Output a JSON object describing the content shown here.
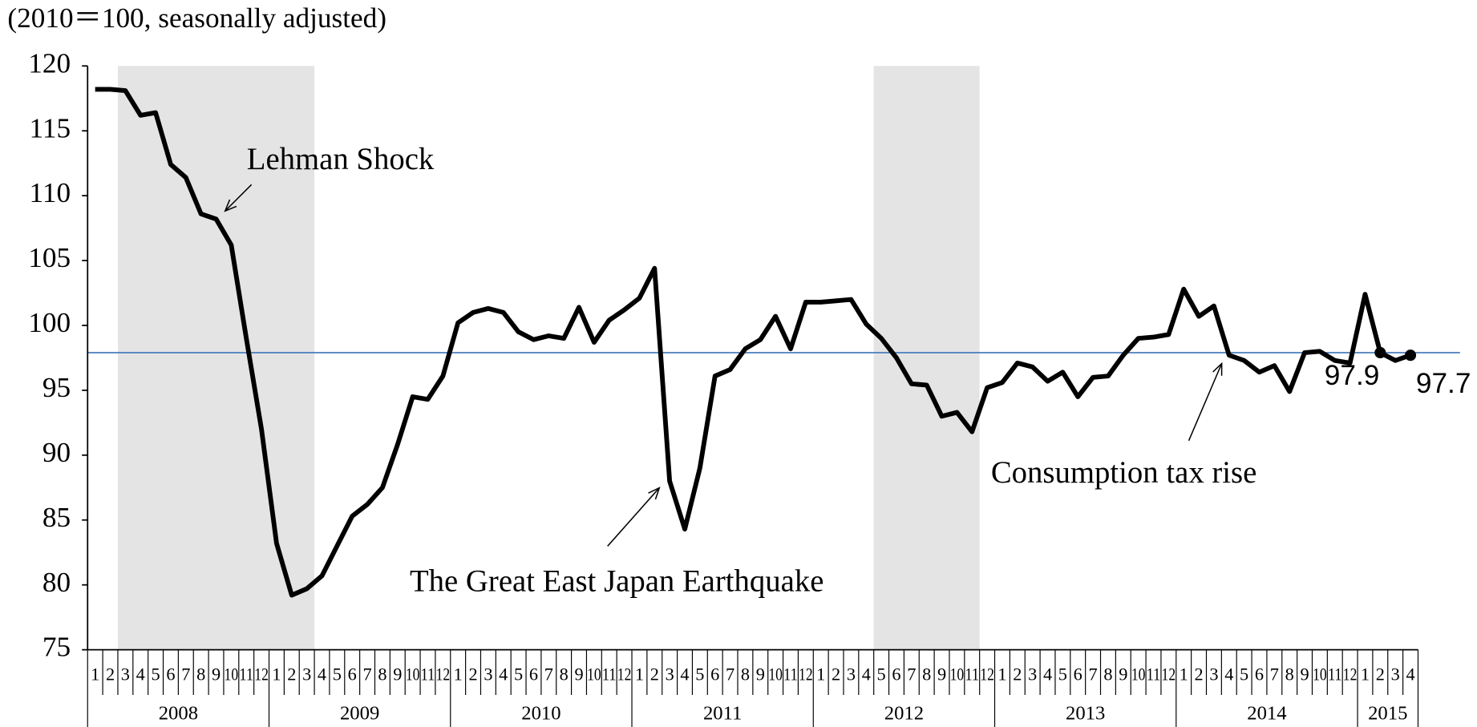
{
  "chart_data": {
    "type": "line",
    "title": "(2010＝100, seasonally adjusted)",
    "categories": [
      "1",
      "2",
      "3",
      "4",
      "5",
      "6",
      "7",
      "8",
      "9",
      "10",
      "11",
      "12",
      "1",
      "2",
      "3",
      "4",
      "5",
      "6",
      "7",
      "8",
      "9",
      "10",
      "11",
      "12",
      "1",
      "2",
      "3",
      "4",
      "5",
      "6",
      "7",
      "8",
      "9",
      "10",
      "11",
      "12",
      "1",
      "2",
      "3",
      "4",
      "5",
      "6",
      "7",
      "8",
      "9",
      "10",
      "11",
      "12",
      "1",
      "2",
      "3",
      "4",
      "5",
      "6",
      "7",
      "8",
      "9",
      "10",
      "11",
      "12",
      "1",
      "2",
      "3",
      "4",
      "5",
      "6",
      "7",
      "8",
      "9",
      "10",
      "11",
      "12",
      "1",
      "2",
      "3",
      "4",
      "5",
      "6",
      "7",
      "8",
      "9",
      "10",
      "11",
      "12",
      "1",
      "2",
      "3",
      "4"
    ],
    "years": [
      "2008",
      "2009",
      "2010",
      "2011",
      "2012",
      "2013",
      "2014",
      "2015"
    ],
    "values": [
      118.2,
      118.2,
      118.1,
      116.2,
      116.4,
      112.4,
      111.4,
      108.6,
      108.2,
      106.2,
      99.0,
      92.0,
      83.2,
      79.2,
      79.7,
      80.7,
      83.0,
      85.3,
      86.2,
      87.5,
      90.8,
      94.5,
      94.3,
      96.1,
      100.2,
      101.0,
      101.3,
      101.0,
      99.5,
      98.9,
      99.2,
      99.0,
      101.4,
      98.7,
      100.4,
      101.2,
      102.1,
      104.4,
      88.0,
      84.3,
      89.0,
      96.1,
      96.6,
      98.2,
      98.9,
      100.7,
      98.2,
      101.8,
      101.8,
      101.9,
      102.0,
      100.1,
      99.0,
      97.5,
      95.5,
      95.4,
      93.0,
      93.3,
      91.8,
      95.2,
      95.6,
      97.1,
      96.8,
      95.7,
      96.4,
      94.5,
      96.0,
      96.1,
      97.7,
      99.0,
      99.1,
      99.3,
      102.8,
      100.7,
      101.5,
      97.7,
      97.3,
      96.4,
      96.9,
      94.9,
      97.9,
      98.0,
      97.3,
      97.1,
      102.4,
      97.9,
      97.3,
      97.7
    ],
    "value_labels": [
      null,
      null,
      null,
      null,
      null,
      null,
      null,
      null,
      null,
      null,
      null,
      null,
      null,
      null,
      null,
      null,
      null,
      null,
      null,
      null,
      null,
      null,
      null,
      null,
      null,
      null,
      null,
      null,
      null,
      null,
      null,
      null,
      null,
      null,
      null,
      null,
      null,
      null,
      null,
      null,
      null,
      null,
      null,
      null,
      null,
      null,
      null,
      null,
      null,
      null,
      null,
      null,
      null,
      null,
      null,
      null,
      null,
      null,
      null,
      null,
      null,
      null,
      null,
      null,
      null,
      null,
      null,
      null,
      null,
      null,
      null,
      null,
      null,
      null,
      null,
      null,
      null,
      null,
      null,
      null,
      null,
      null,
      null,
      null,
      null,
      "97.9",
      null,
      "97.7"
    ],
    "color": "#000000",
    "ylim": [
      75,
      120
    ],
    "yticks": [
      75,
      80,
      85,
      90,
      95,
      100,
      105,
      110,
      115,
      120
    ],
    "reference_line": 97.9,
    "reference_color": "#4a7ebb",
    "shaded_periods": [
      [
        2,
        14
      ],
      [
        52,
        58
      ]
    ],
    "shade_color": "#e4e4e4",
    "annotations": [
      "Lehman Shock",
      "The Great East Japan Earthquake",
      "Consumption tax rise"
    ]
  }
}
